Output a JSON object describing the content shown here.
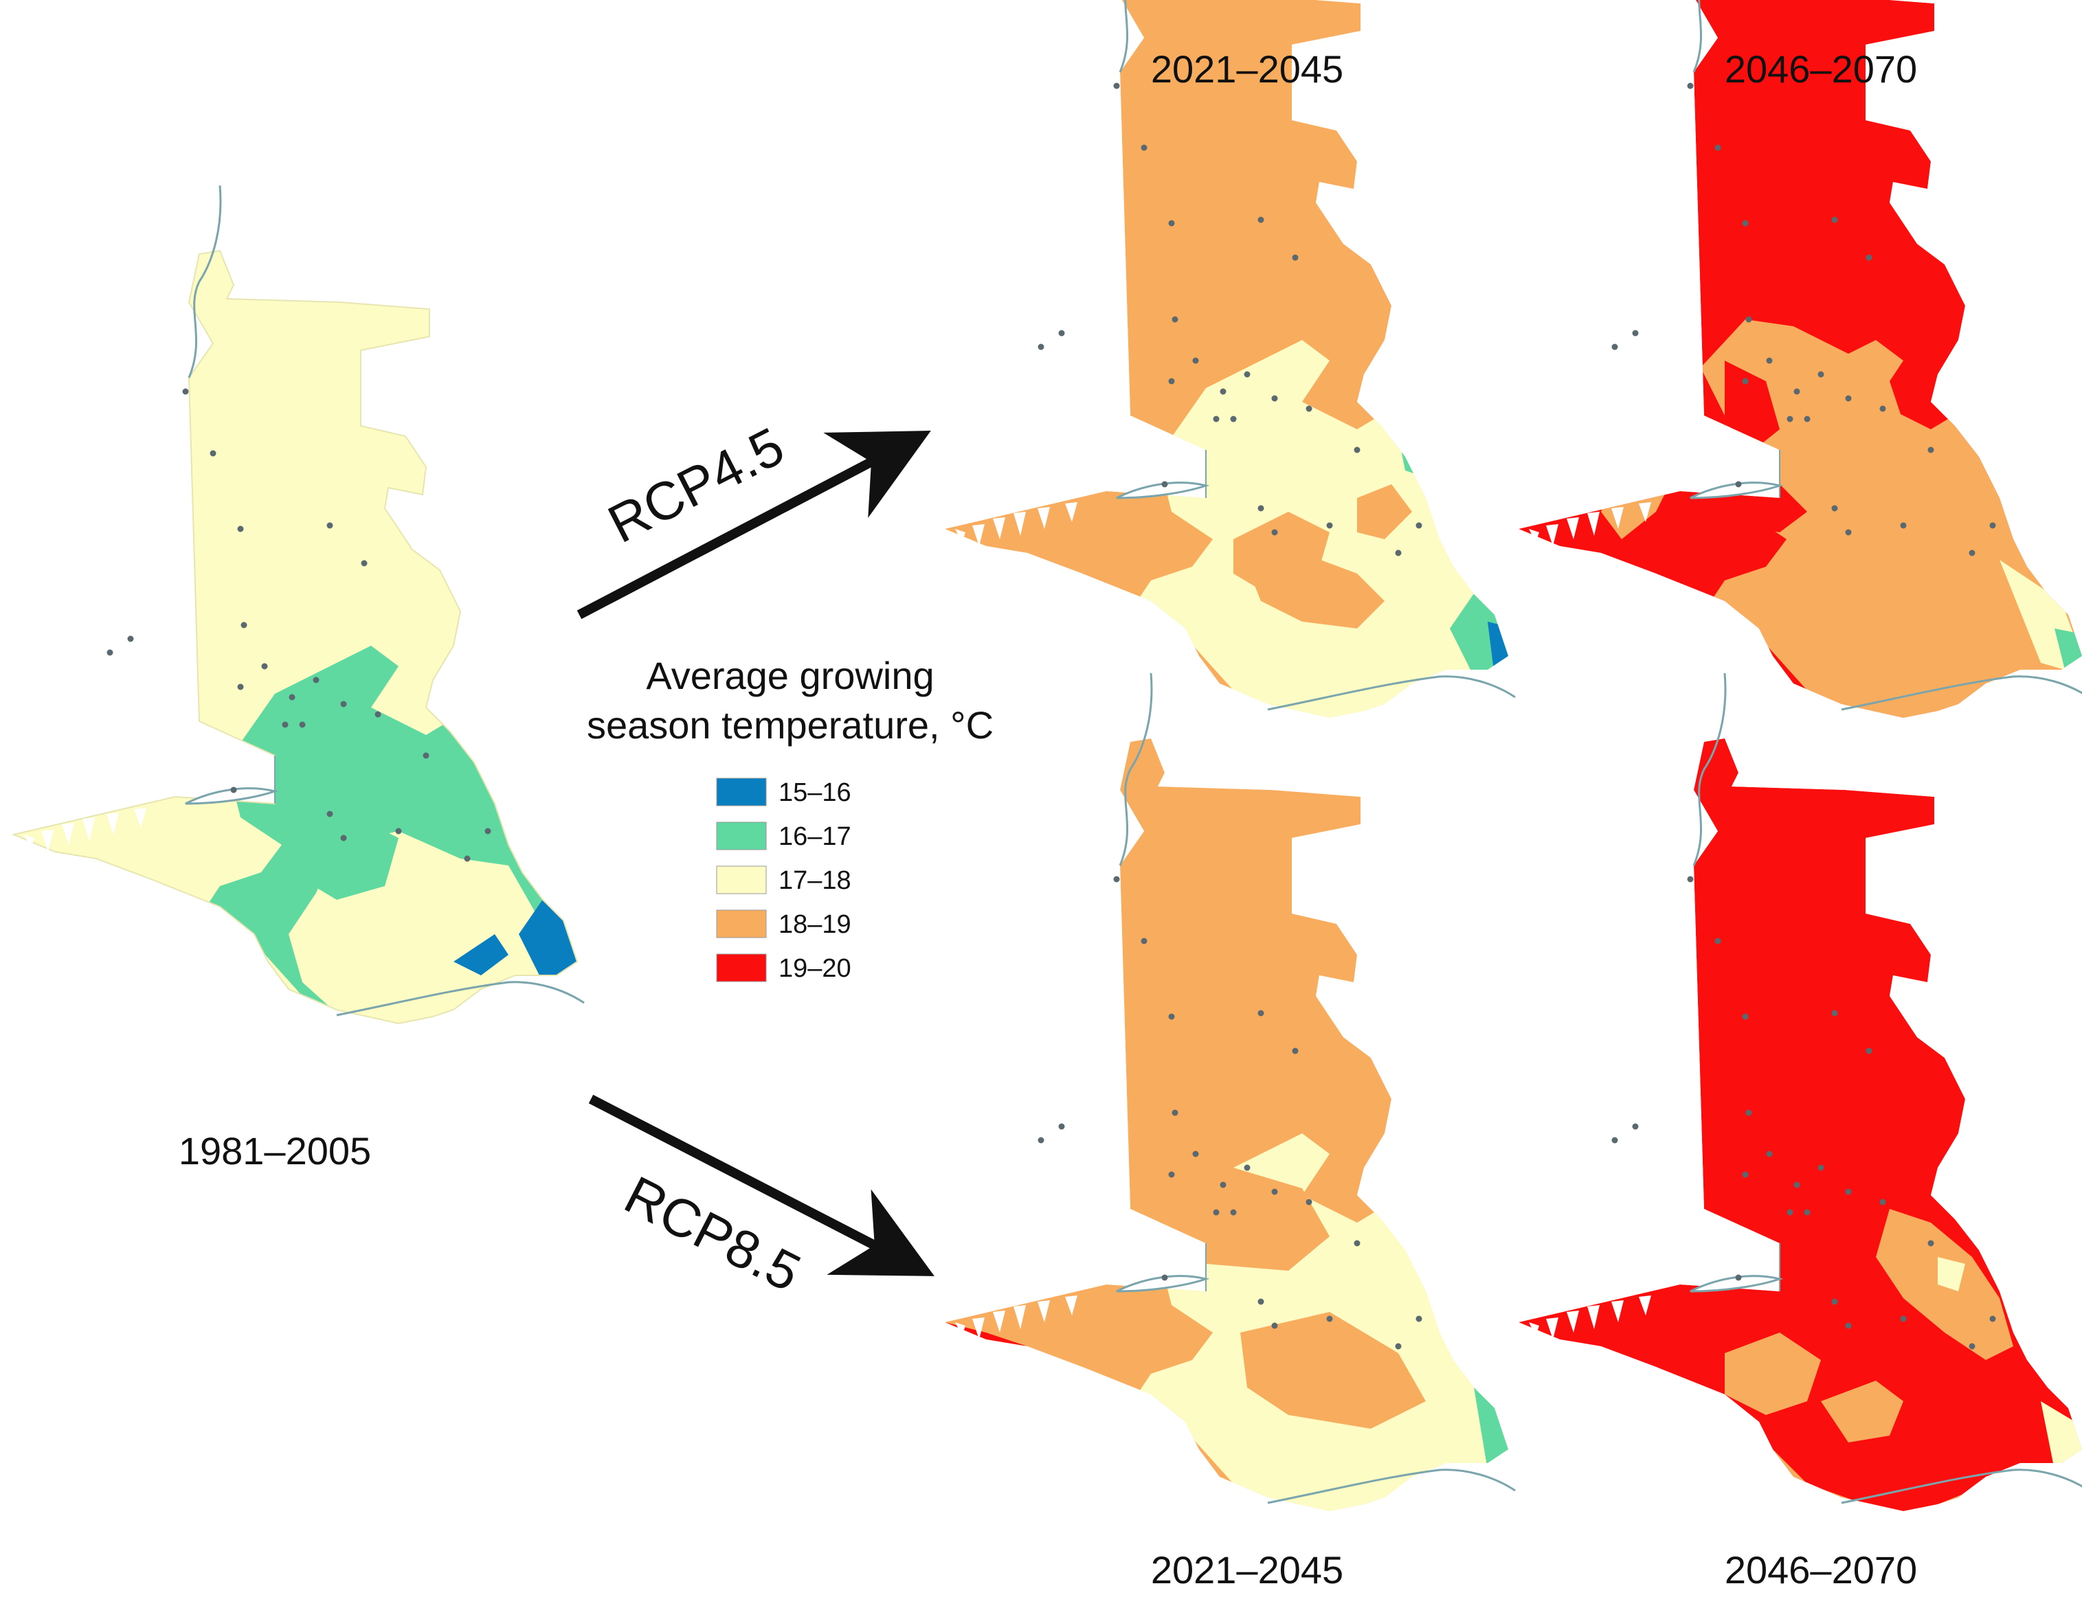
{
  "periods": {
    "baseline": "1981–2005",
    "near_top": "2021–2045",
    "far_top": "2046–2070",
    "near_bottom": "2021–2045",
    "far_bottom": "2046–2070"
  },
  "scenarios": {
    "rcp45": "RCP4.5",
    "rcp85": "RCP8.5"
  },
  "legend": {
    "title_line1": "Average growing",
    "title_line2": "season temperature, °C",
    "items": [
      {
        "label": "15–16",
        "color": "#0a7fc0"
      },
      {
        "label": "16–17",
        "color": "#5fd9a0"
      },
      {
        "label": "17–18",
        "color": "#fdfcc4"
      },
      {
        "label": "18–19",
        "color": "#f8ad5e"
      },
      {
        "label": "19–20",
        "color": "#fb0e0e"
      }
    ]
  },
  "colors": {
    "coast": "#7aa5ad",
    "station": "#5a6870",
    "arrow": "#111111"
  }
}
